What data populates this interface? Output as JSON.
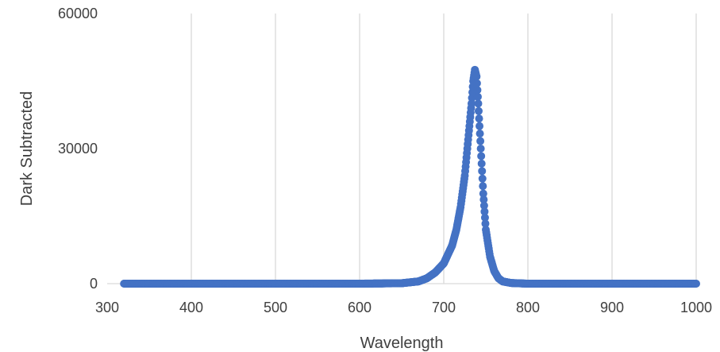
{
  "chart_data": {
    "type": "scatter",
    "title": "",
    "xlabel": "Wavelength",
    "ylabel": "Dark Subtracted",
    "xlim": [
      300,
      1000
    ],
    "ylim": [
      0,
      60000
    ],
    "x_ticks": [
      300,
      400,
      500,
      600,
      700,
      800,
      900,
      1000
    ],
    "y_ticks": [
      0,
      30000,
      60000
    ],
    "grid": {
      "vertical": true,
      "horizontal": false
    },
    "legend": "none",
    "series": [
      {
        "color": "#4472c4",
        "x_range": [
          320,
          1000
        ],
        "marker": "circle",
        "points": [
          [
            320,
            0
          ],
          [
            400,
            0
          ],
          [
            500,
            0
          ],
          [
            600,
            0
          ],
          [
            650,
            100
          ],
          [
            670,
            500
          ],
          [
            680,
            1200
          ],
          [
            690,
            2500
          ],
          [
            700,
            4500
          ],
          [
            710,
            8500
          ],
          [
            715,
            12000
          ],
          [
            720,
            17000
          ],
          [
            725,
            24000
          ],
          [
            730,
            34000
          ],
          [
            733,
            40000
          ],
          [
            735,
            45000
          ],
          [
            737,
            47500
          ],
          [
            739,
            46000
          ],
          [
            741,
            40000
          ],
          [
            744,
            30000
          ],
          [
            747,
            20000
          ],
          [
            750,
            12000
          ],
          [
            755,
            6000
          ],
          [
            760,
            2800
          ],
          [
            765,
            1200
          ],
          [
            770,
            500
          ],
          [
            780,
            150
          ],
          [
            800,
            0
          ],
          [
            900,
            0
          ],
          [
            1000,
            0
          ]
        ]
      }
    ]
  }
}
